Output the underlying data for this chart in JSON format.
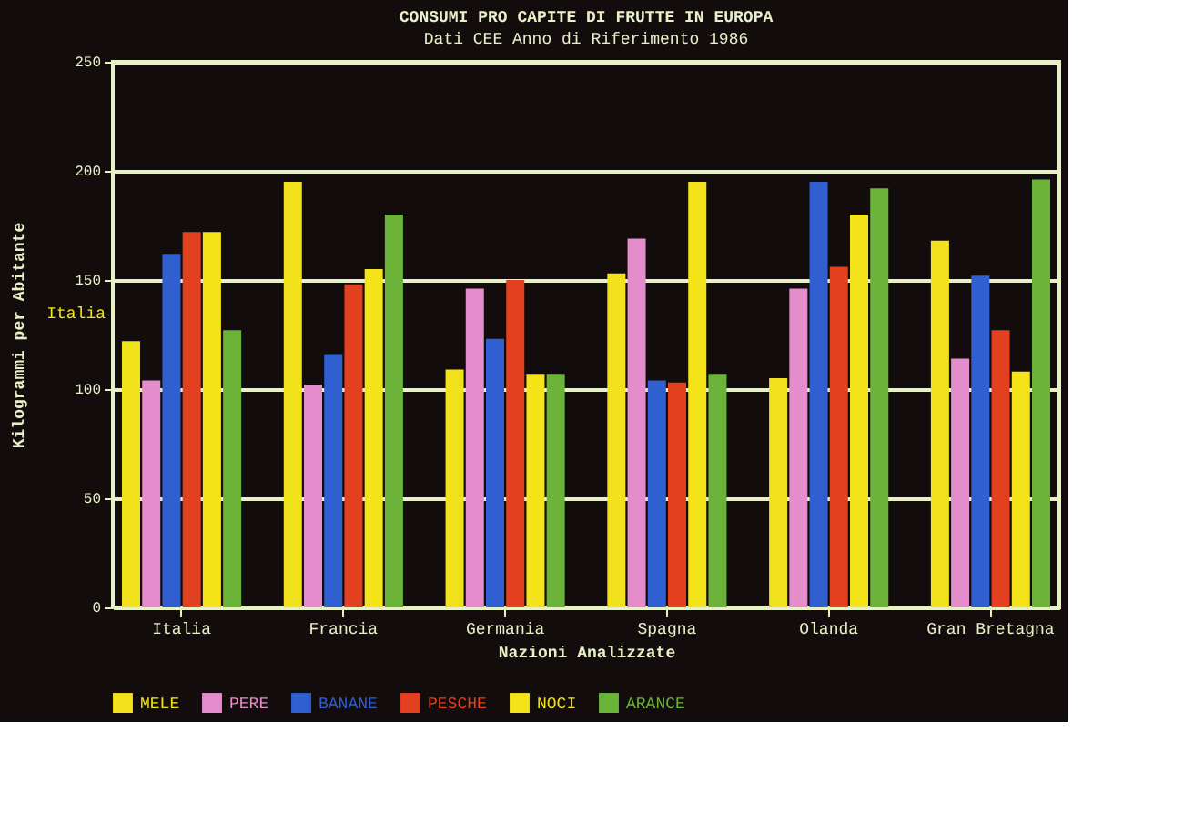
{
  "chart_data": {
    "type": "bar",
    "title": "CONSUMI PRO CAPITE DI FRUTTE IN EUROPA",
    "subtitle": "Dati CEE Anno di Riferimento 1986",
    "xlabel": "Nazioni Analizzate",
    "ylabel": "Kilogrammi per Abitante",
    "categories": [
      "Italia",
      "Francia",
      "Germania",
      "Spagna",
      "Olanda",
      "Gran Bretagna"
    ],
    "series": [
      {
        "name": "MELE",
        "color": "#f2e21c",
        "values": [
          122,
          195,
          109,
          153,
          105,
          168
        ]
      },
      {
        "name": "PERE",
        "color": "#e58ccc",
        "values": [
          104,
          102,
          146,
          169,
          146,
          114
        ]
      },
      {
        "name": "BANANE",
        "color": "#2f5fd0",
        "values": [
          162,
          116,
          123,
          104,
          195,
          152
        ]
      },
      {
        "name": "PESCHE",
        "color": "#e2401f",
        "values": [
          172,
          148,
          150,
          103,
          156,
          127
        ]
      },
      {
        "name": "NOCI",
        "color": "#f5e31a",
        "values": [
          172,
          155,
          107,
          195,
          180,
          108
        ]
      },
      {
        "name": "ARANCE",
        "color": "#6cb33a",
        "values": [
          127,
          180,
          107,
          107,
          192,
          196
        ]
      }
    ],
    "ylim": [
      0,
      250
    ],
    "yticks": [
      0,
      50,
      100,
      150,
      200,
      250
    ],
    "grid": "y",
    "legend": "bottom",
    "annotations": [
      "Italia"
    ]
  }
}
